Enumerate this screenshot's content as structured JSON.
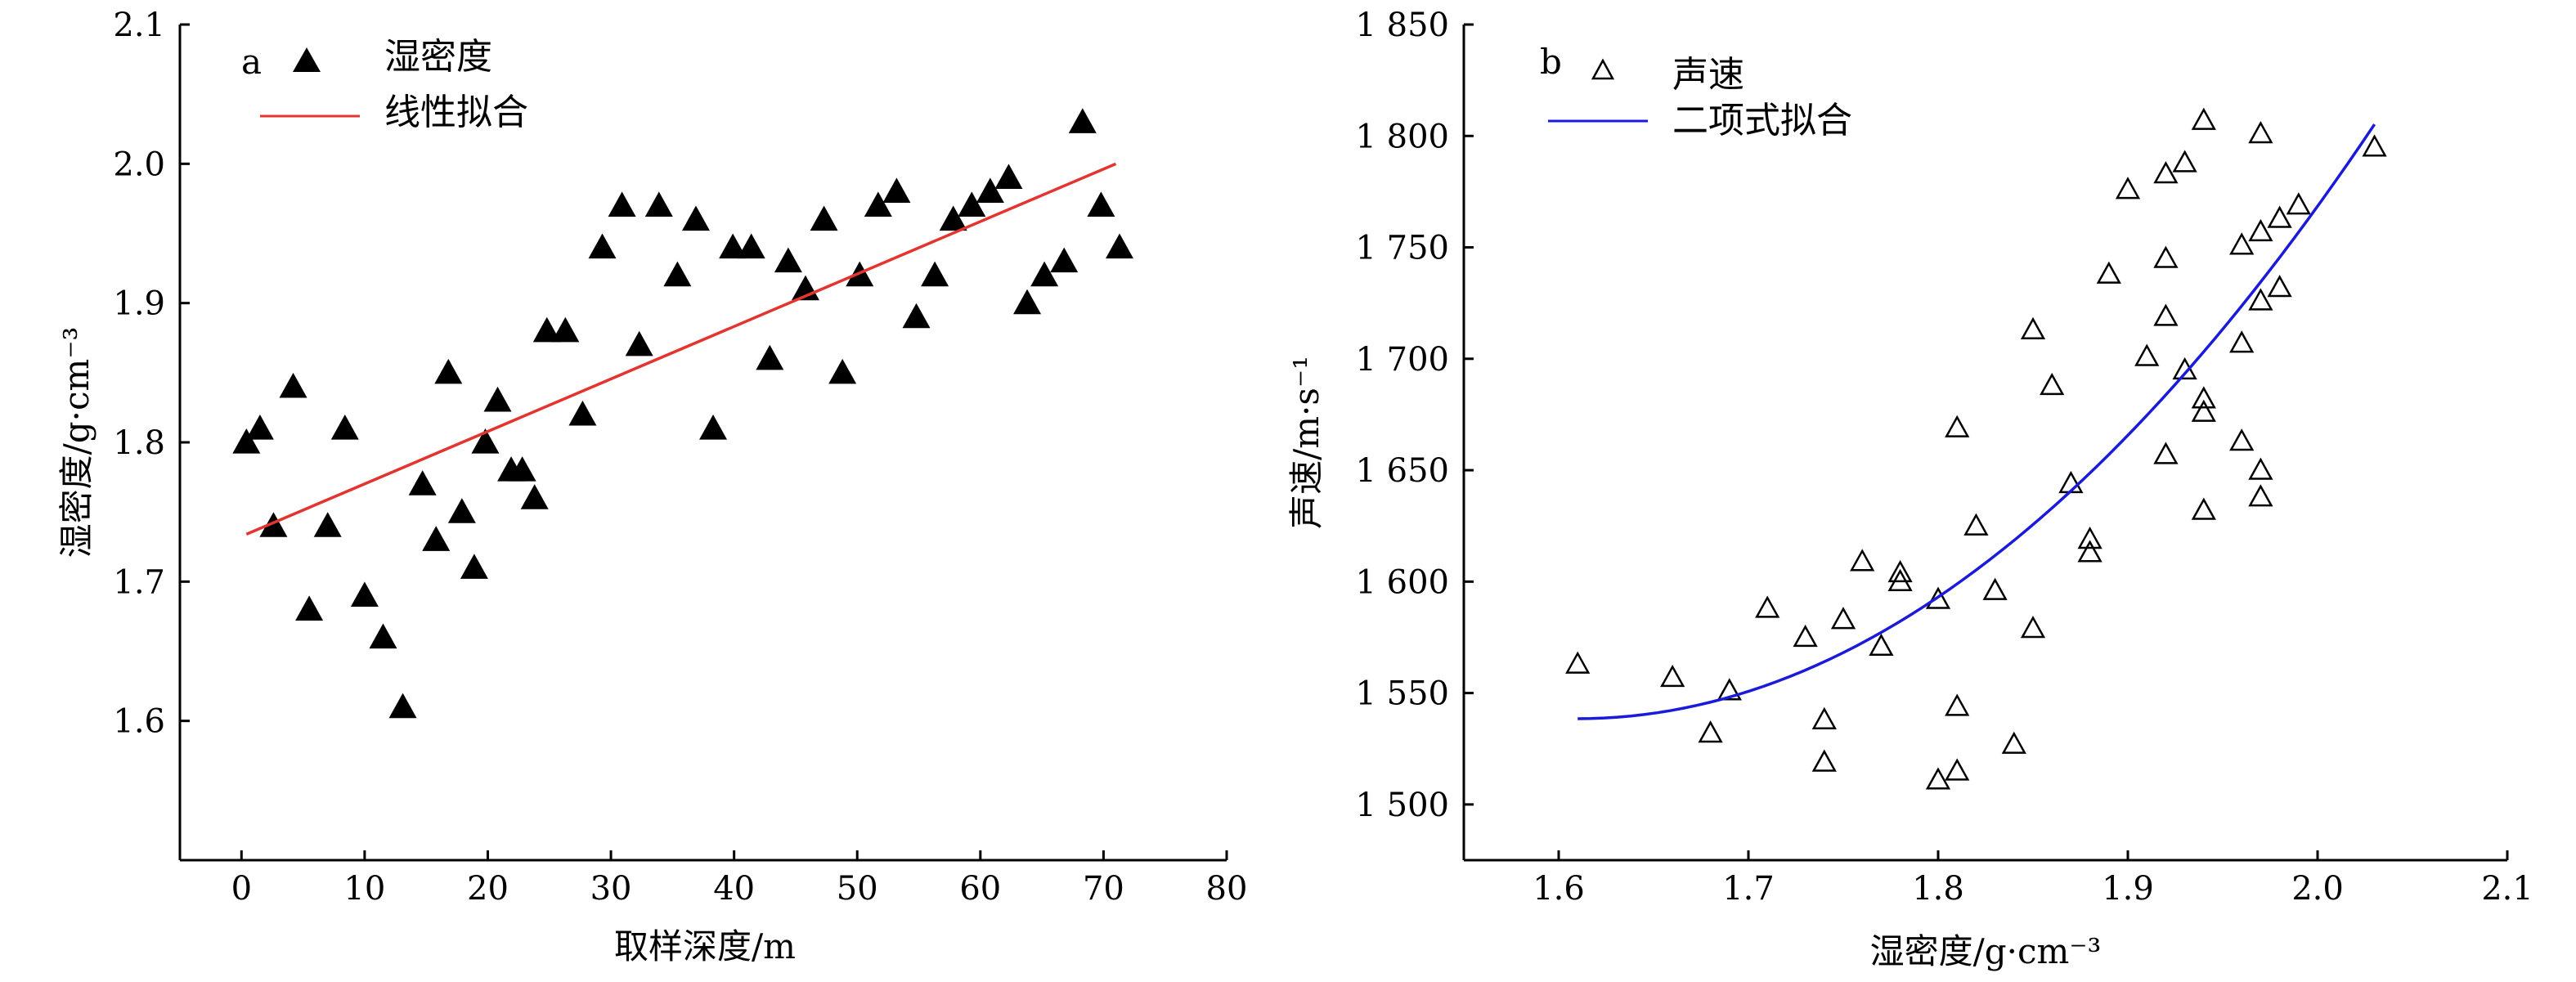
{
  "chart_data": [
    {
      "type": "scatter",
      "panel_label": "a",
      "xlabel": "取样深度/m",
      "ylabel": "湿密度/g·cm⁻³",
      "xlim": [
        -5,
        80
      ],
      "ylim": [
        1.5,
        2.1
      ],
      "xticks": [
        0,
        10,
        20,
        30,
        40,
        50,
        60,
        70,
        80
      ],
      "yticks": [
        1.6,
        1.7,
        1.8,
        1.9,
        2.0,
        2.1
      ],
      "xtick_labels": [
        "0",
        "10",
        "20",
        "30",
        "40",
        "50",
        "60",
        "70",
        "80"
      ],
      "ytick_labels": [
        "1.6",
        "1.7",
        "1.8",
        "1.9",
        "2.0",
        "2.1"
      ],
      "legend": {
        "location": "top-left",
        "points_label": "湿密度",
        "line_label": "线性拟合"
      },
      "colors": {
        "points": "#000000",
        "fit": "#e3342f"
      },
      "series": [
        {
          "name": "湿密度",
          "marker": "filled-triangle",
          "points": [
            [
              0.4,
              1.8
            ],
            [
              1.5,
              1.81
            ],
            [
              2.6,
              1.74
            ],
            [
              4.2,
              1.84
            ],
            [
              5.5,
              1.68
            ],
            [
              7.0,
              1.74
            ],
            [
              8.4,
              1.81
            ],
            [
              10.0,
              1.69
            ],
            [
              11.5,
              1.66
            ],
            [
              13.1,
              1.61
            ],
            [
              14.7,
              1.77
            ],
            [
              15.8,
              1.73
            ],
            [
              16.8,
              1.85
            ],
            [
              17.9,
              1.75
            ],
            [
              18.9,
              1.71
            ],
            [
              19.8,
              1.8
            ],
            [
              20.8,
              1.83
            ],
            [
              21.9,
              1.78
            ],
            [
              22.8,
              1.78
            ],
            [
              23.8,
              1.76
            ],
            [
              24.8,
              1.88
            ],
            [
              26.3,
              1.88
            ],
            [
              27.7,
              1.82
            ],
            [
              29.3,
              1.94
            ],
            [
              30.9,
              1.97
            ],
            [
              32.3,
              1.87
            ],
            [
              33.9,
              1.97
            ],
            [
              35.4,
              1.92
            ],
            [
              36.9,
              1.96
            ],
            [
              38.3,
              1.81
            ],
            [
              39.9,
              1.94
            ],
            [
              41.4,
              1.94
            ],
            [
              42.9,
              1.86
            ],
            [
              44.4,
              1.93
            ],
            [
              45.8,
              1.91
            ],
            [
              47.3,
              1.96
            ],
            [
              48.8,
              1.85
            ],
            [
              50.2,
              1.92
            ],
            [
              51.7,
              1.97
            ],
            [
              53.2,
              1.98
            ],
            [
              54.8,
              1.89
            ],
            [
              56.3,
              1.92
            ],
            [
              57.8,
              1.96
            ],
            [
              59.3,
              1.97
            ],
            [
              60.8,
              1.98
            ],
            [
              62.3,
              1.99
            ],
            [
              63.8,
              1.9
            ],
            [
              65.2,
              1.92
            ],
            [
              66.8,
              1.93
            ],
            [
              68.3,
              2.03
            ],
            [
              69.8,
              1.97
            ],
            [
              71.3,
              1.94
            ]
          ]
        },
        {
          "name": "线性拟合",
          "fit": "linear",
          "points": [
            [
              0.4,
              1.734
            ],
            [
              71.0,
              2.0
            ]
          ]
        }
      ]
    },
    {
      "type": "scatter",
      "panel_label": "b",
      "xlabel": "湿密度/g·cm⁻³",
      "ylabel": "声速/m·s⁻¹",
      "xlim": [
        1.55,
        2.1
      ],
      "ylim": [
        1475,
        1850
      ],
      "xticks": [
        1.6,
        1.7,
        1.8,
        1.9,
        2.0,
        2.1
      ],
      "yticks": [
        1500,
        1550,
        1600,
        1650,
        1700,
        1750,
        1800,
        1850
      ],
      "xtick_labels": [
        "1.6",
        "1.7",
        "1.8",
        "1.9",
        "2.0",
        "2.1"
      ],
      "ytick_labels": [
        "1 500",
        "1 550",
        "1 600",
        "1 650",
        "1 700",
        "1 750",
        "1 800",
        "1 850"
      ],
      "legend": {
        "location": "top-left",
        "points_label": "声速",
        "line_label": "二项式拟合"
      },
      "colors": {
        "points": "#000000",
        "fit": "#1a1adb"
      },
      "series": [
        {
          "name": "声速",
          "marker": "open-triangle",
          "points": [
            [
              1.61,
              1563
            ],
            [
              1.66,
              1557
            ],
            [
              1.68,
              1532
            ],
            [
              1.69,
              1551
            ],
            [
              1.71,
              1588
            ],
            [
              1.73,
              1575
            ],
            [
              1.74,
              1538
            ],
            [
              1.74,
              1519
            ],
            [
              1.75,
              1583
            ],
            [
              1.76,
              1609
            ],
            [
              1.77,
              1571
            ],
            [
              1.78,
              1604
            ],
            [
              1.78,
              1600
            ],
            [
              1.8,
              1592
            ],
            [
              1.8,
              1511
            ],
            [
              1.81,
              1544
            ],
            [
              1.81,
              1515
            ],
            [
              1.81,
              1669
            ],
            [
              1.82,
              1625
            ],
            [
              1.83,
              1596
            ],
            [
              1.84,
              1527
            ],
            [
              1.85,
              1713
            ],
            [
              1.85,
              1579
            ],
            [
              1.86,
              1688
            ],
            [
              1.87,
              1644
            ],
            [
              1.88,
              1619
            ],
            [
              1.88,
              1613
            ],
            [
              1.89,
              1738
            ],
            [
              1.9,
              1776
            ],
            [
              1.91,
              1701
            ],
            [
              1.92,
              1783
            ],
            [
              1.92,
              1745
            ],
            [
              1.92,
              1719
            ],
            [
              1.92,
              1657
            ],
            [
              1.93,
              1788
            ],
            [
              1.93,
              1695
            ],
            [
              1.94,
              1807
            ],
            [
              1.94,
              1682
            ],
            [
              1.94,
              1676
            ],
            [
              1.94,
              1632
            ],
            [
              1.96,
              1751
            ],
            [
              1.96,
              1707
            ],
            [
              1.96,
              1663
            ],
            [
              1.97,
              1801
            ],
            [
              1.97,
              1757
            ],
            [
              1.97,
              1726
            ],
            [
              1.97,
              1650
            ],
            [
              1.97,
              1638
            ],
            [
              1.98,
              1763
            ],
            [
              1.98,
              1732
            ],
            [
              1.99,
              1769
            ],
            [
              2.03,
              1795
            ]
          ]
        },
        {
          "name": "二项式拟合",
          "fit": "quadratic",
          "coefficients": {
            "a": 1538.5,
            "b": 3.0,
            "c": 1512.0
          },
          "x_range": [
            1.61,
            2.03
          ]
        }
      ]
    }
  ]
}
